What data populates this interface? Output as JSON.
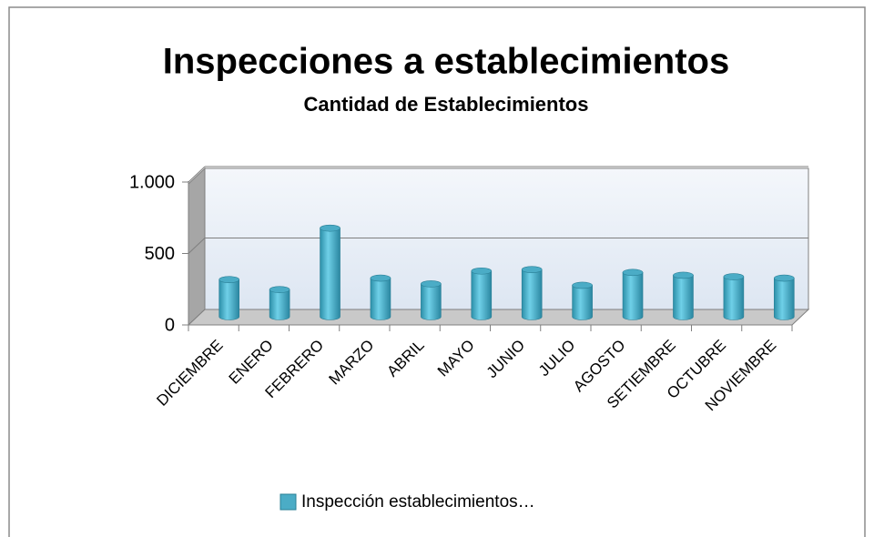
{
  "chart_data": {
    "type": "bar3d",
    "title": "Inspecciones a establecimientos",
    "subtitle": "Cantidad de Establecimientos",
    "categories": [
      "DICIEMBRE",
      "ENERO",
      "FEBRERO",
      "MARZO",
      "ABRIL",
      "MAYO",
      "JUNIO",
      "JULIO",
      "AGOSTO",
      "SETIEMBRE",
      "OCTUBRE",
      "NOVIEMBRE"
    ],
    "series": [
      {
        "name": "Inspección establecimientos…",
        "color": "#4bacc6",
        "values": [
          260,
          190,
          620,
          270,
          230,
          320,
          330,
          220,
          310,
          290,
          280,
          270
        ]
      }
    ],
    "ylim": [
      0,
      1000
    ],
    "yticks": [
      0,
      500,
      {
        "value": 1000,
        "label": "1.000"
      }
    ],
    "grid": true,
    "legend": "bottom"
  }
}
